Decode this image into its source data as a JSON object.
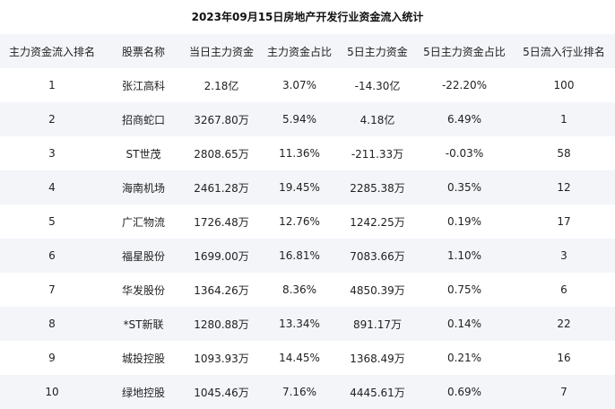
{
  "title": "2023年09月15日房地产开发行业资金流入统计",
  "table": {
    "headers": [
      "主力资金流入排名",
      "股票名称",
      "当日主力资金",
      "主力资金占比",
      "5日主力资金",
      "5日主力资金占比",
      "5日流入行业排名"
    ],
    "rows": [
      [
        "1",
        "张江高科",
        "2.18亿",
        "3.07%",
        "-14.30亿",
        "-22.20%",
        "100"
      ],
      [
        "2",
        "招商蛇口",
        "3267.80万",
        "5.94%",
        "4.18亿",
        "6.49%",
        "1"
      ],
      [
        "3",
        "ST世茂",
        "2808.65万",
        "11.36%",
        "-211.33万",
        "-0.03%",
        "58"
      ],
      [
        "4",
        "海南机场",
        "2461.28万",
        "19.45%",
        "2285.38万",
        "0.35%",
        "12"
      ],
      [
        "5",
        "广汇物流",
        "1726.48万",
        "12.76%",
        "1242.25万",
        "0.19%",
        "17"
      ],
      [
        "6",
        "福星股份",
        "1699.00万",
        "16.81%",
        "7083.66万",
        "1.10%",
        "3"
      ],
      [
        "7",
        "华发股份",
        "1364.26万",
        "8.36%",
        "4850.39万",
        "0.75%",
        "6"
      ],
      [
        "8",
        "*ST新联",
        "1280.88万",
        "13.34%",
        "891.17万",
        "0.14%",
        "22"
      ],
      [
        "9",
        "城投控股",
        "1093.93万",
        "14.45%",
        "1368.49万",
        "0.21%",
        "16"
      ],
      [
        "10",
        "绿地控股",
        "1045.46万",
        "7.16%",
        "4445.61万",
        "0.69%",
        "7"
      ]
    ]
  },
  "colors": {
    "stripe": "#f3f5f9",
    "text": "#222222"
  }
}
